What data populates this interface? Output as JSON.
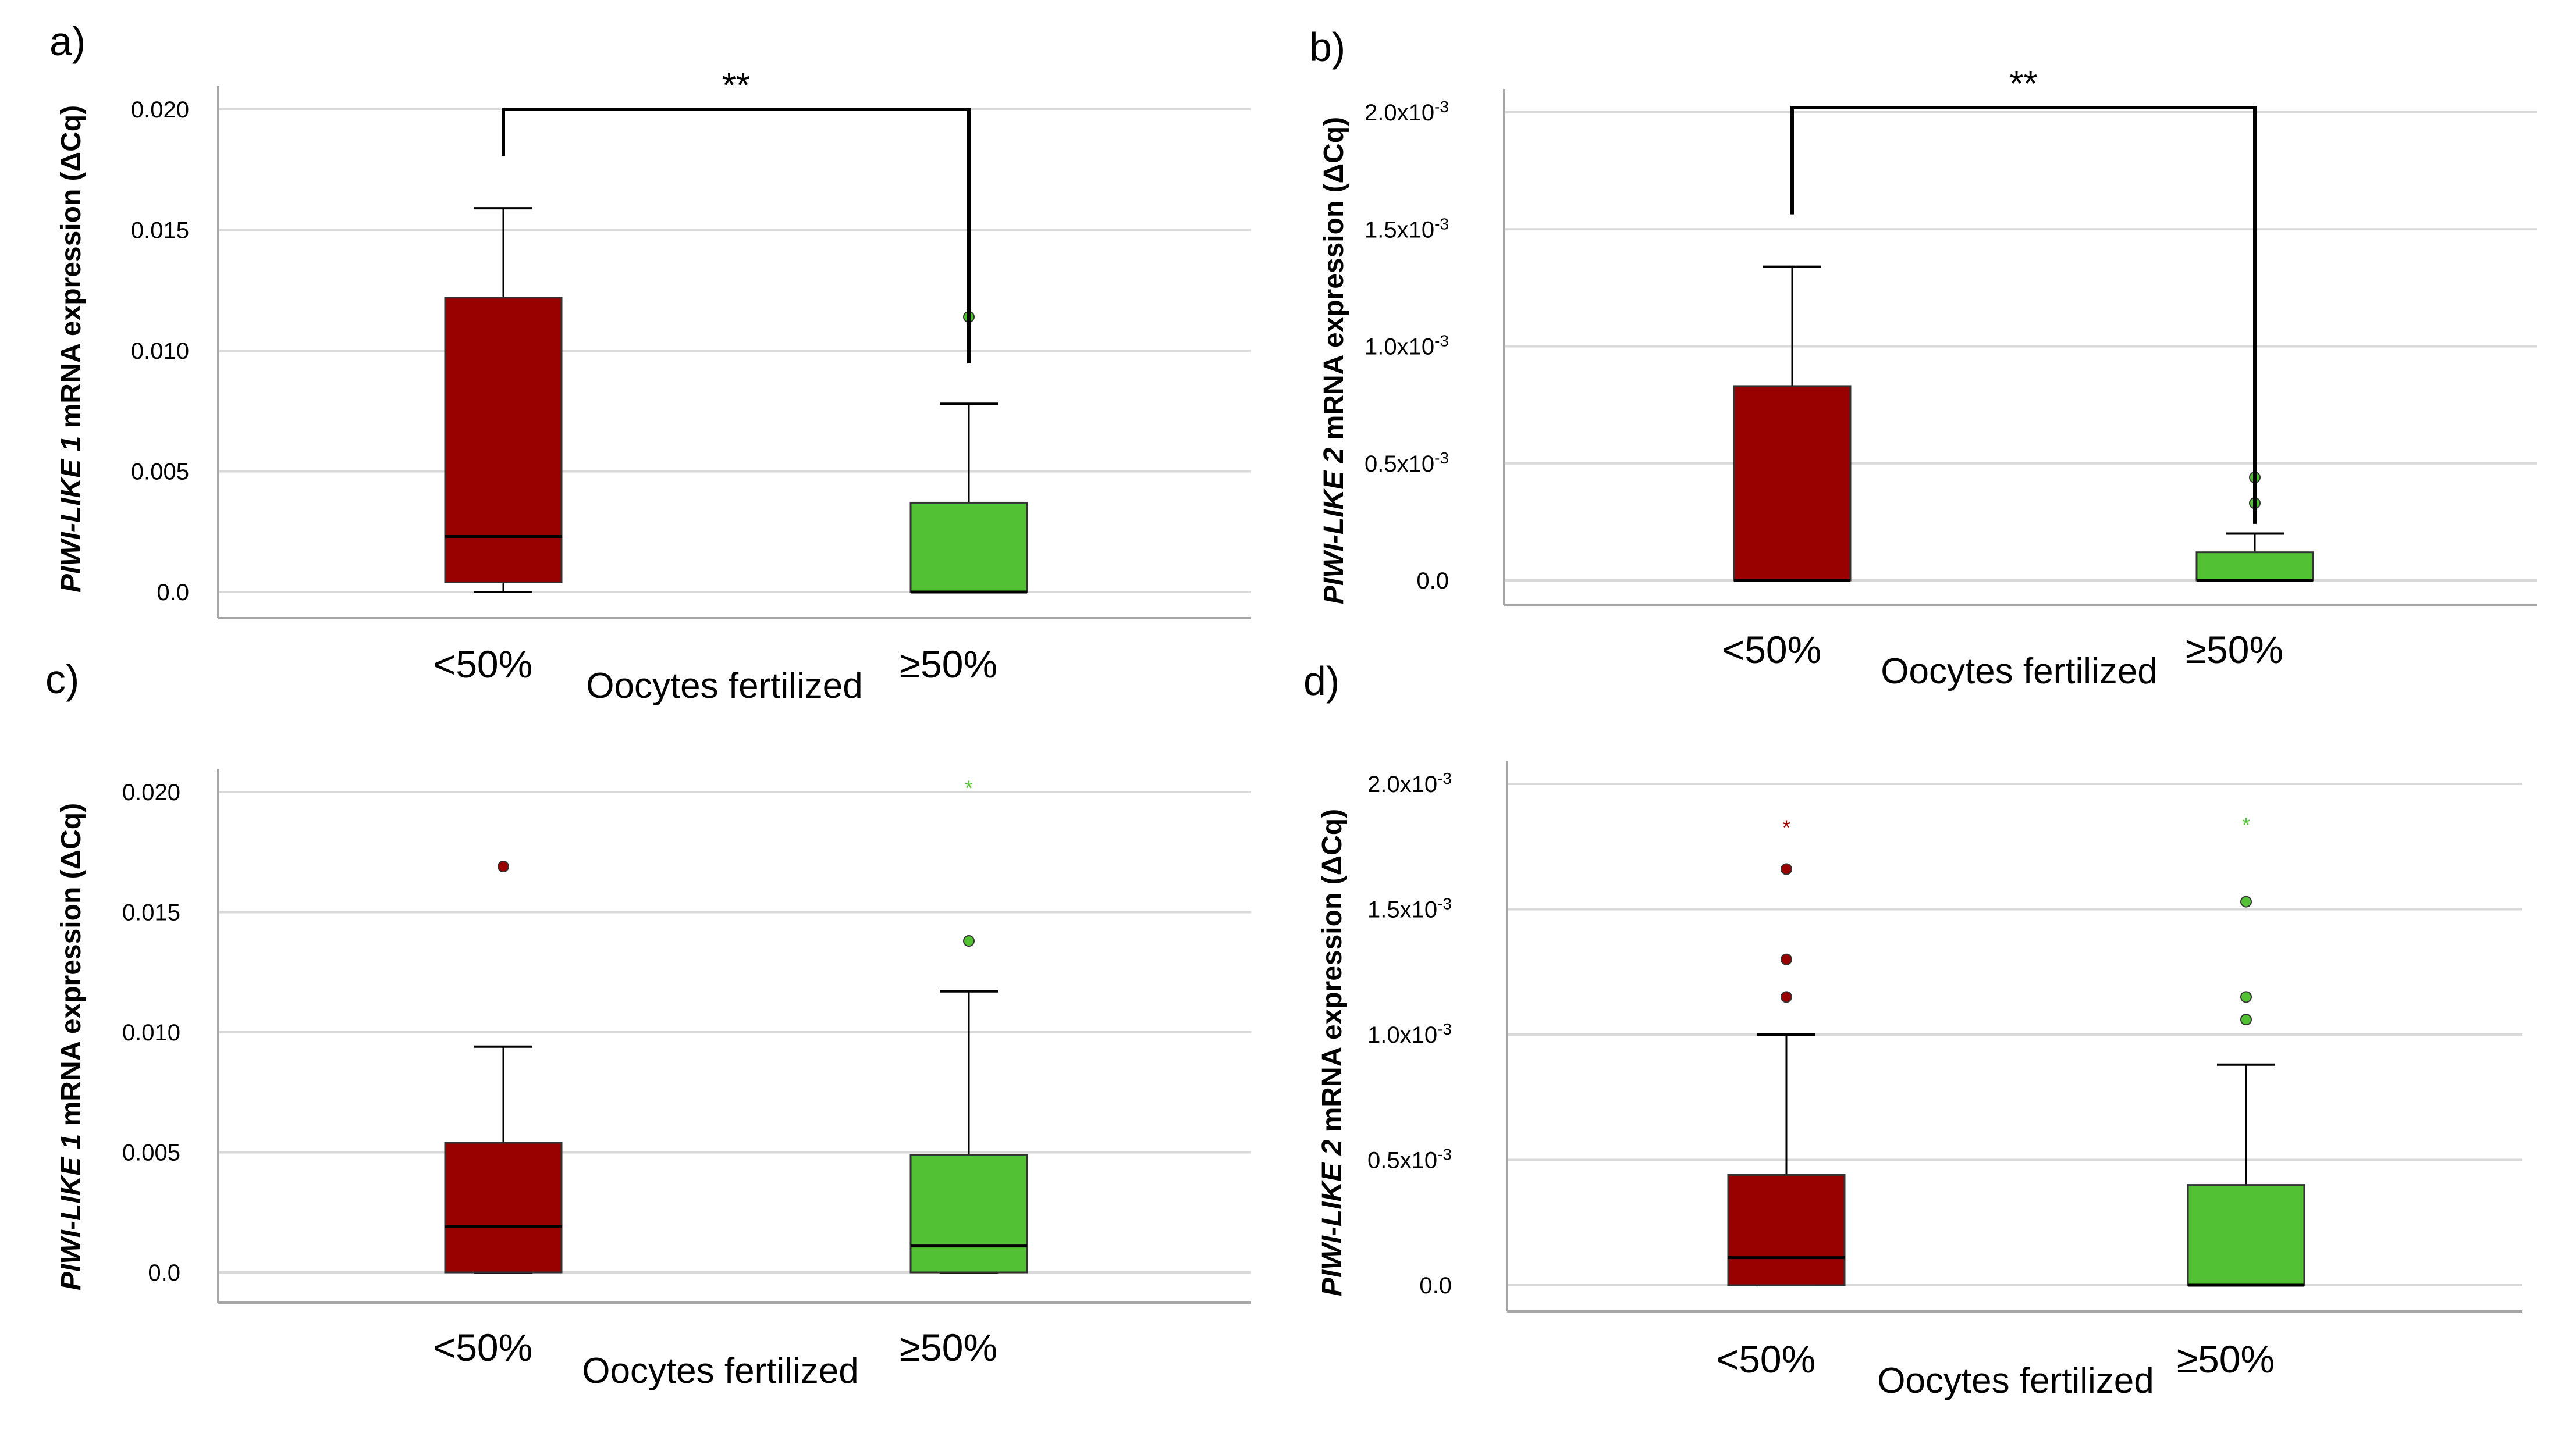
{
  "chart_data": [
    {
      "panel": "a)",
      "type": "box",
      "y_gene": "PIWI-LIKE 1",
      "y_rest": " mRNA expression (ΔCq)",
      "xlabel": "Oocytes fertilized",
      "categories": [
        "<50%",
        "≥50%"
      ],
      "yticks": [
        "0.0",
        "0.005",
        "0.010",
        "0.015",
        "0.020"
      ],
      "ylim": [
        0,
        0.02
      ],
      "significance": "**",
      "boxes": [
        {
          "category": "<50%",
          "color": "#990000",
          "min": 0.0,
          "q1": 0.0004,
          "median": 0.0023,
          "q3": 0.0122,
          "max": 0.0159,
          "outliers": [],
          "extremes": []
        },
        {
          "category": "≥50%",
          "color": "#52c234",
          "min": 0.0,
          "q1": 0.0,
          "median": 0.0,
          "q3": 0.0037,
          "max": 0.0078,
          "outliers": [
            0.0114
          ],
          "extremes": []
        }
      ]
    },
    {
      "panel": "b)",
      "type": "box",
      "y_gene": "PIWI-LIKE 2",
      "y_rest": " mRNA expression (ΔCq)",
      "xlabel": "Oocytes fertilized",
      "categories": [
        "<50%",
        "≥50%"
      ],
      "yticks": [
        "0.0",
        "0.5x10",
        "1.0x10",
        "1.5x10",
        "2.0x10"
      ],
      "ytick_exp": "-3",
      "ylim": [
        0,
        0.002
      ],
      "significance": "**",
      "boxes": [
        {
          "category": "<50%",
          "color": "#990000",
          "min": 0.0,
          "q1": 0.0,
          "median": 0.0,
          "q3": 0.00083,
          "max": 0.00134,
          "outliers": [],
          "extremes": []
        },
        {
          "category": "≥50%",
          "color": "#52c234",
          "min": 0.0,
          "q1": 0.0,
          "median": 0.0,
          "q3": 0.00012,
          "max": 0.0002,
          "outliers": [
            0.00033,
            0.00044
          ],
          "extremes": []
        }
      ]
    },
    {
      "panel": "c)",
      "type": "box",
      "y_gene": "PIWI-LIKE 1",
      "y_rest": " mRNA expression (ΔCq)",
      "xlabel": "Oocytes fertilized",
      "categories": [
        "<50%",
        "≥50%"
      ],
      "yticks": [
        "0.0",
        "0.005",
        "0.010",
        "0.015",
        "0.020"
      ],
      "ylim": [
        0,
        0.02
      ],
      "significance": "",
      "boxes": [
        {
          "category": "<50%",
          "color": "#990000",
          "min": 0.0,
          "q1": 0.0,
          "median": 0.0019,
          "q3": 0.0054,
          "max": 0.0094,
          "outliers": [
            0.0169
          ],
          "extremes": []
        },
        {
          "category": "≥50%",
          "color": "#52c234",
          "min": 0.0,
          "q1": 0.0,
          "median": 0.0011,
          "q3": 0.0049,
          "max": 0.0117,
          "outliers": [
            0.0138
          ],
          "extremes": [
            0.0202
          ]
        }
      ]
    },
    {
      "panel": "d)",
      "type": "box",
      "y_gene": "PIWI-LIKE 2",
      "y_rest": " mRNA expression (ΔCq)",
      "xlabel": "Oocytes fertilized",
      "categories": [
        "<50%",
        "≥50%"
      ],
      "yticks": [
        "0.0",
        "0.5x10",
        "1.0x10",
        "1.5x10",
        "2.0x10"
      ],
      "ytick_exp": "-3",
      "ylim": [
        0,
        0.002
      ],
      "significance": "",
      "boxes": [
        {
          "category": "<50%",
          "color": "#990000",
          "min": 0.0,
          "q1": 0.0,
          "median": 0.00011,
          "q3": 0.00044,
          "max": 0.001,
          "outliers": [
            0.00115,
            0.0013,
            0.00166
          ],
          "extremes": [
            0.00183
          ]
        },
        {
          "category": "≥50%",
          "color": "#52c234",
          "min": 0.0,
          "q1": 0.0,
          "median": 0.0,
          "q3": 0.0004,
          "max": 0.00088,
          "outliers": [
            0.00106,
            0.00115,
            0.00153
          ],
          "extremes": [
            0.00184
          ]
        }
      ]
    }
  ]
}
